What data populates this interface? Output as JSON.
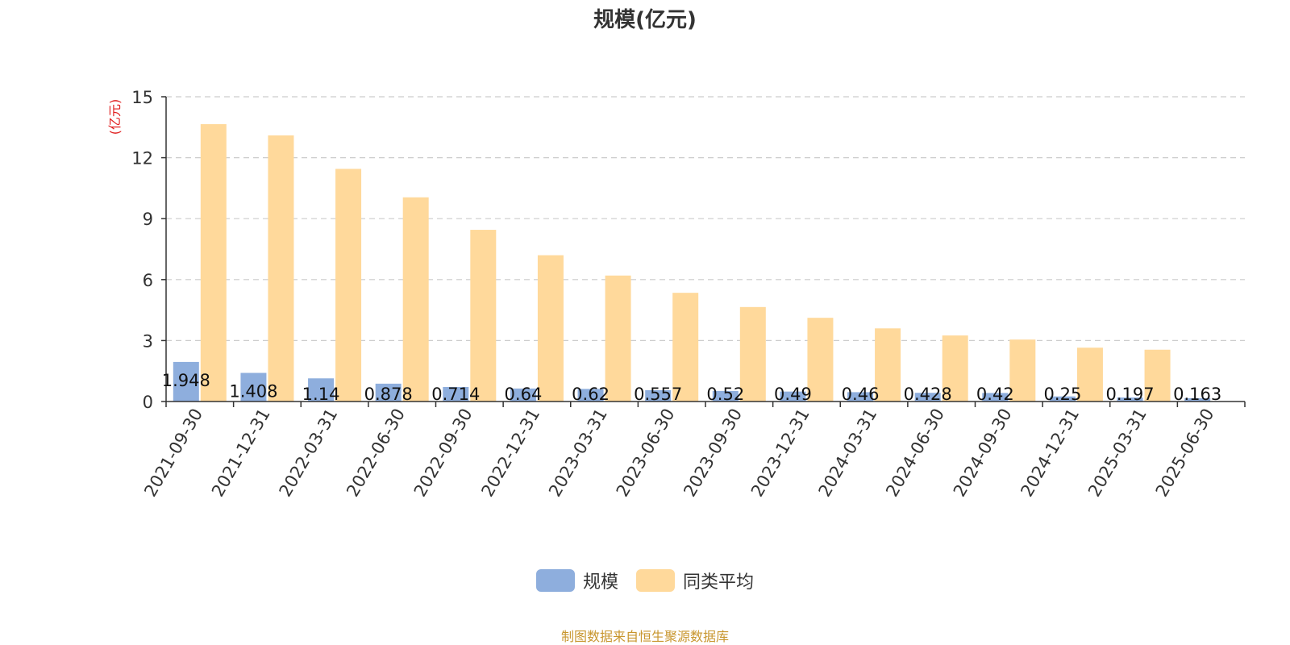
{
  "chart_data": {
    "type": "bar",
    "title": "规模(亿元)",
    "ylabel": "(亿元)",
    "ylim": [
      0,
      15
    ],
    "yticks": [
      "0",
      "3",
      "6",
      "9",
      "12",
      "15"
    ],
    "categories": [
      "2021-09-30",
      "2021-12-31",
      "2022-03-31",
      "2022-06-30",
      "2022-09-30",
      "2022-12-31",
      "2023-03-31",
      "2023-06-30",
      "2023-09-30",
      "2023-12-31",
      "2024-03-31",
      "2024-06-30",
      "2024-09-30",
      "2024-12-31",
      "2025-03-31",
      "2025-06-30"
    ],
    "series": [
      {
        "name": "规模",
        "color": "#8eaedd",
        "values": [
          1.948,
          1.408,
          1.14,
          0.878,
          0.714,
          0.64,
          0.62,
          0.557,
          0.52,
          0.49,
          0.46,
          0.428,
          0.42,
          0.25,
          0.197,
          0.163
        ],
        "labels": [
          "1.948",
          "1.408",
          "1.14",
          "0.878",
          "0.714",
          "0.64",
          "0.62",
          "0.557",
          "0.52",
          "0.49",
          "0.46",
          "0.428",
          "0.42",
          "0.25",
          "0.197",
          "0.163"
        ]
      },
      {
        "name": "同类平均",
        "color": "#ffd99b",
        "values": [
          13.65,
          13.1,
          11.45,
          10.05,
          8.45,
          7.2,
          6.2,
          5.35,
          4.65,
          4.12,
          3.6,
          3.25,
          3.05,
          2.65,
          2.55,
          0
        ]
      }
    ],
    "grid": true,
    "legend_position": "bottom-center",
    "axis_label_color": "#e02020"
  },
  "source_note": "制图数据来自恒生聚源数据库",
  "source_note_color": "#c8962e"
}
